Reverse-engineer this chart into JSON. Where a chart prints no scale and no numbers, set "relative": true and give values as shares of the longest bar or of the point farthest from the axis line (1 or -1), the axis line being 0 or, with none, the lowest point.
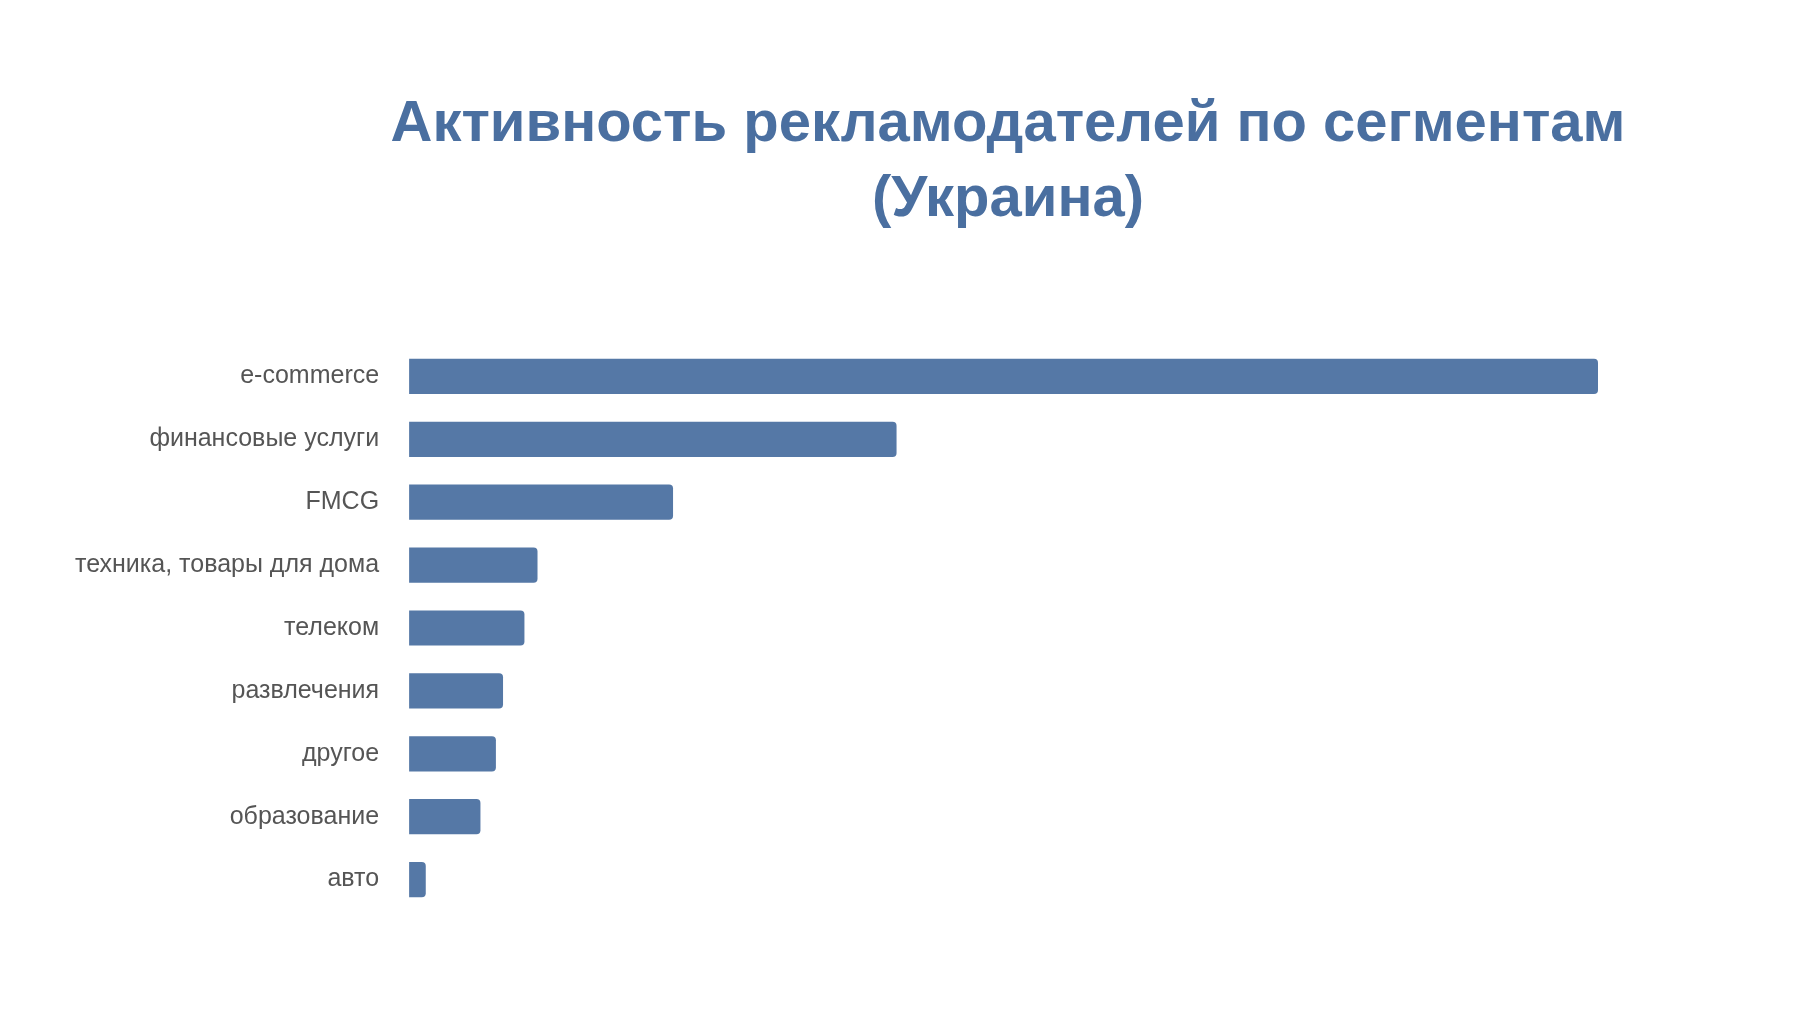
{
  "chart_data": {
    "type": "bar",
    "orientation": "horizontal",
    "relative": true,
    "title": "Активность рекламодателей по сегментам (Украина)",
    "categories": [
      "e-commerce",
      "финансовые услуги",
      "FMCG",
      "техника, товары для дома",
      "телеком",
      "развлечения",
      "другое",
      "образование",
      "авто"
    ],
    "values": [
      1,
      0.41,
      0.222,
      0.108,
      0.097,
      0.079,
      0.073,
      0.06,
      0.014
    ],
    "color": "#5578a6"
  }
}
